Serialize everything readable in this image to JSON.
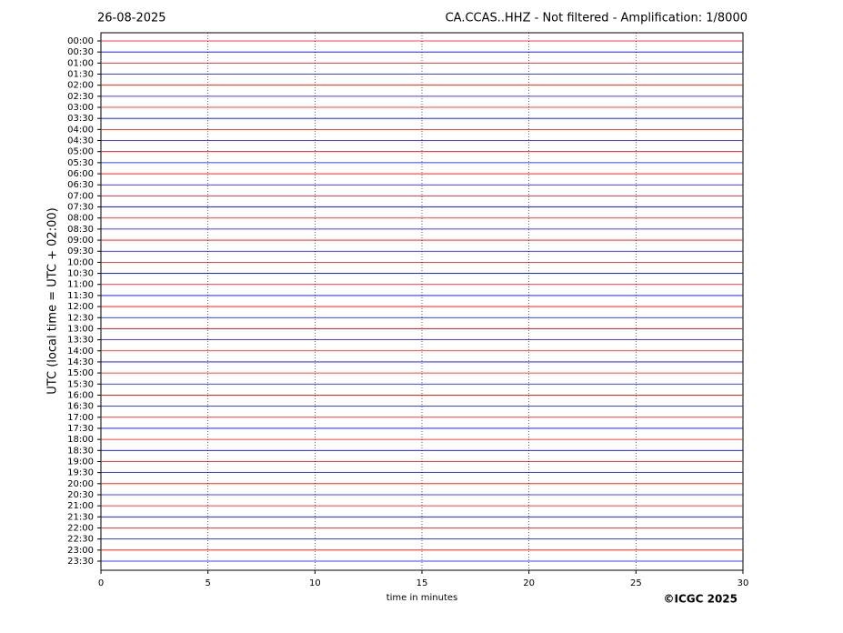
{
  "chart_data": {
    "type": "helicorder",
    "date": "26-08-2025",
    "title": "CA.CCAS..HHZ - Not filtered - Amplification: 1/8000",
    "categories": [
      "00:00",
      "00:30",
      "01:00",
      "01:30",
      "02:00",
      "02:30",
      "03:00",
      "03:30",
      "04:00",
      "04:30",
      "05:00",
      "05:30",
      "06:00",
      "06:30",
      "07:00",
      "07:30",
      "08:00",
      "08:30",
      "09:00",
      "09:30",
      "10:00",
      "10:30",
      "11:00",
      "11:30",
      "12:00",
      "12:30",
      "13:00",
      "13:30",
      "14:00",
      "14:30",
      "15:00",
      "15:30",
      "16:00",
      "16:30",
      "17:00",
      "17:30",
      "18:00",
      "18:30",
      "19:00",
      "19:30",
      "20:00",
      "20:30",
      "21:00",
      "21:30",
      "22:00",
      "22:30",
      "23:00",
      "23:30"
    ],
    "trace_colors": [
      "#ff0000",
      "#0000ff"
    ],
    "xlim": [
      0,
      30
    ],
    "xticks": [
      0,
      5,
      10,
      15,
      20,
      25,
      30
    ],
    "xlabel": "time in minutes",
    "ylabel": "UTC (local time = UTC + 02:00)",
    "grid": true,
    "copyright": "©ICGC 2025"
  }
}
